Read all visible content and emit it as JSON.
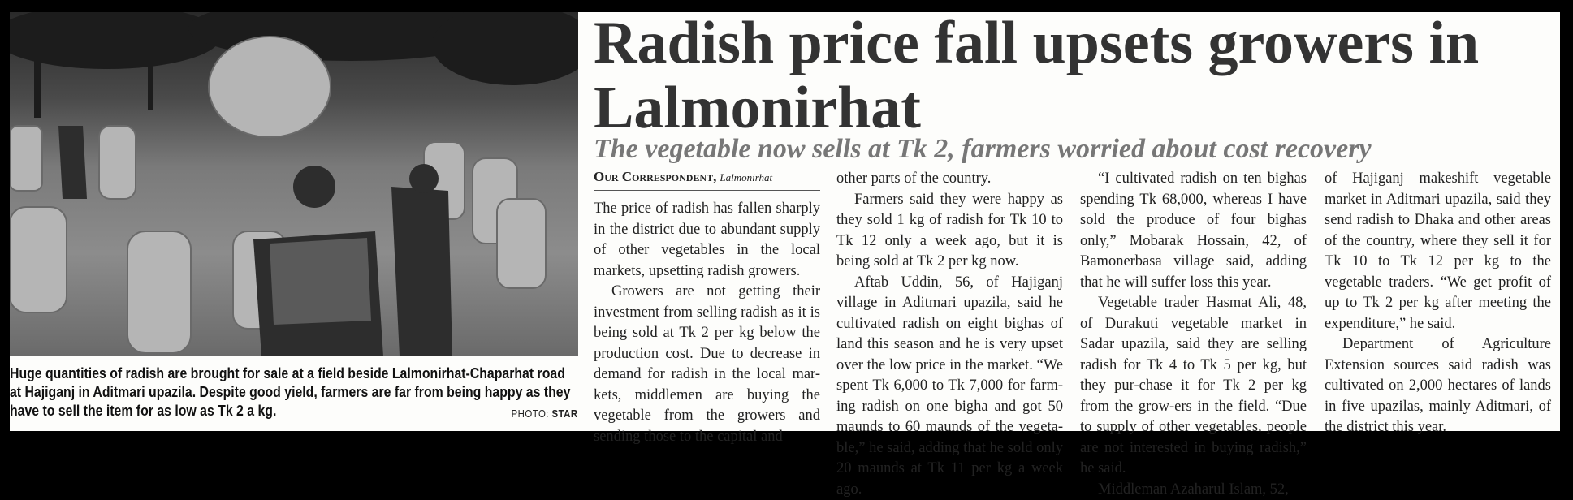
{
  "headline": "Radish price fall upsets growers in Lalmonirhat",
  "subheadline": "The vegetable now sells at Tk 2, farmers worried about cost recovery",
  "byline": {
    "name": "Our Correspondent,",
    "location": "Lalmonirhat"
  },
  "photo": {
    "caption": "Huge quantities of radish are brought for sale at a field beside Lalmonirhat-Chaparhat road at Hajiganj in Aditmari upazila. Despite good yield, farmers are far from being happy as they have to sell the item for as low as Tk 2 a kg.",
    "credit_prefix": "PHOTO:",
    "credit_source": "STAR"
  },
  "columns": [
    [
      "The price of radish has fallen sharply in the district due to abundant supply of other vegetables in the local markets, upsetting radish growers.",
      "Growers are not getting their investment from selling radish as it is being sold at Tk 2 per kg below the production cost. Due to decrease in demand for radish in the local mar-kets, middlemen are buying the vegetable from the growers and sending those to the capital and"
    ],
    [
      "other parts of the country.",
      "Farmers said they were happy as they sold 1 kg of radish for Tk 10 to Tk 12 only a week ago, but it is being sold at Tk 2 per kg now.",
      "Aftab Uddin, 56, of Hajiganj village in Aditmari upazila, said he cultivated radish on eight bighas of land this season and he is very upset over the low price in the market. “We spent Tk 6,000 to Tk 7,000 for farm-ing radish on one bigha and got 50 maunds to 60 maunds of the vegeta-ble,” he said, adding that he sold only 20 maunds at Tk 11 per kg a week ago."
    ],
    [
      "“I cultivated radish on ten bighas spending Tk 68,000, whereas I have sold the produce of four bighas only,” Mobarak Hossain, 42, of Bamonerbasa village said, adding that he will suffer loss this year.",
      "Vegetable trader Hasmat Ali, 48, of Durakuti vegetable market in Sadar upazila, said they are selling radish for Tk 4 to Tk 5 per kg, but they pur-chase it for Tk 2 per kg from the grow-ers in the field. “Due to supply of other vegetables, people are not interested in buying radish,” he said.",
      "Middleman Azaharul Islam, 52,"
    ],
    [
      "of Hajiganj makeshift vegetable market in Aditmari upazila, said they send radish to Dhaka and other areas of the country, where they sell it for Tk 10 to Tk 12 per kg to the vegetable traders. “We get profit of up to Tk 2 per kg after meeting the expenditure,” he said.",
      "Department of Agriculture Extension sources said radish was cultivated on 2,000 hectares of lands in five upazilas, mainly Aditmari, of the district this year."
    ]
  ]
}
